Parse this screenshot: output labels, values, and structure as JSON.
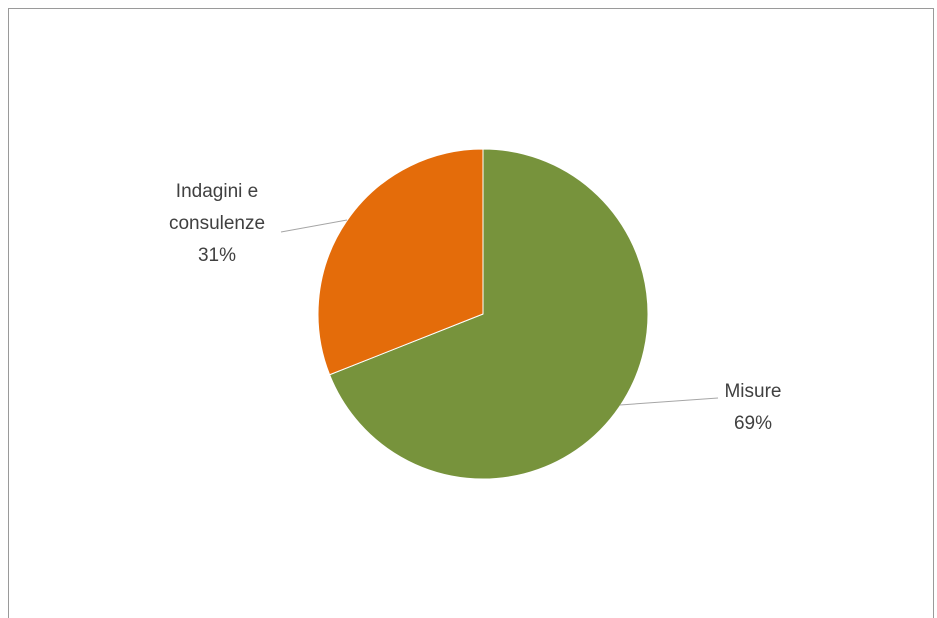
{
  "chart_data": {
    "type": "pie",
    "title": "",
    "slices": [
      {
        "label_lines": [
          "Misure"
        ],
        "value": 69,
        "percent_label": "69%",
        "color": "#77933c"
      },
      {
        "label_lines": [
          "Indagini e",
          "consulenze"
        ],
        "value": 31,
        "percent_label": "31%",
        "color": "#e46c0a"
      }
    ],
    "start_angle_deg": 0,
    "direction": "clockwise",
    "legend": "none",
    "data_labels": "outside-with-leader-lines"
  }
}
